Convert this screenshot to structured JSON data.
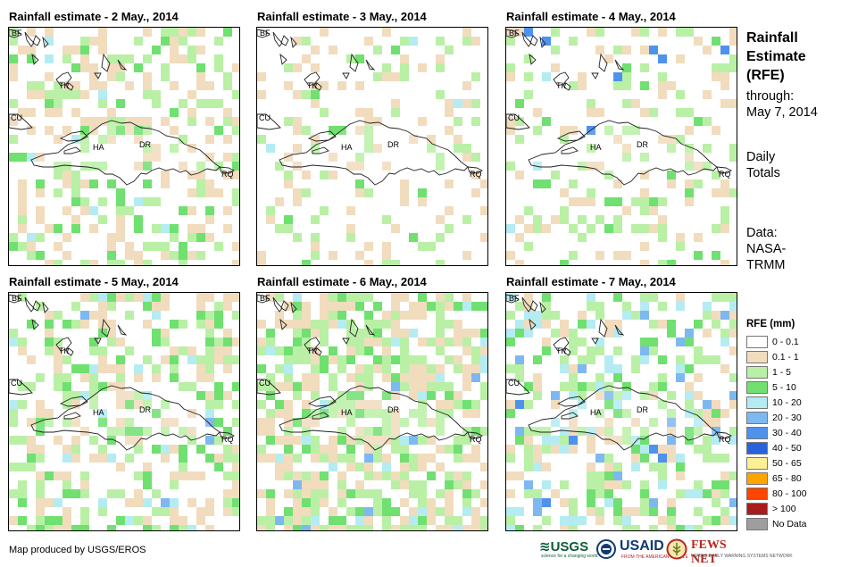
{
  "panels": [
    {
      "title": "Rainfall estimate - 2 May., 2014"
    },
    {
      "title": "Rainfall estimate - 3 May., 2014"
    },
    {
      "title": "Rainfall estimate - 4 May., 2014"
    },
    {
      "title": "Rainfall estimate - 5 May., 2014"
    },
    {
      "title": "Rainfall estimate - 6 May., 2014"
    },
    {
      "title": "Rainfall estimate - 7 May., 2014"
    }
  ],
  "place_labels": {
    "bf": "BF",
    "tk": "TK",
    "cu": "CU",
    "ha": "HA",
    "dr": "DR",
    "rq": "RQ"
  },
  "side_info": {
    "title_line1": "Rainfall",
    "title_line2": "Estimate",
    "title_line3": "(RFE)",
    "through_label": "through:",
    "through_date": "May 7, 2014",
    "totals_line1": "Daily",
    "totals_line2": "Totals",
    "data_label": "Data:",
    "data_source_line1": "NASA-",
    "data_source_line2": "TRMM"
  },
  "legend": {
    "title": "RFE (mm)",
    "items": [
      {
        "label": "0 - 0.1",
        "color": "#ffffff"
      },
      {
        "label": "0.1 - 1",
        "color": "#f1dcbe"
      },
      {
        "label": "1 - 5",
        "color": "#b9f0a6"
      },
      {
        "label": "5 - 10",
        "color": "#70e070"
      },
      {
        "label": "10 - 20",
        "color": "#b4ecf2"
      },
      {
        "label": "20 - 30",
        "color": "#7eb8f0"
      },
      {
        "label": "30 - 40",
        "color": "#4e92ec"
      },
      {
        "label": "40 - 50",
        "color": "#2a62dc"
      },
      {
        "label": "50 - 65",
        "color": "#fff096"
      },
      {
        "label": "65 - 80",
        "color": "#ffa500"
      },
      {
        "label": "80 - 100",
        "color": "#ff4400"
      },
      {
        "label": "> 100",
        "color": "#a81c1c"
      },
      {
        "label": "No Data",
        "color": "#9e9e9e"
      }
    ]
  },
  "footer": {
    "credit": "Map produced by USGS/EROS",
    "usgs": "USGS",
    "usgs_tagline": "science for a changing world",
    "usaid": "USAID",
    "usaid_tagline": "FROM THE AMERICAN PEOPLE",
    "fews": "FEWS NET",
    "fews_tagline": "FAMINE EARLY WARNING SYSTEMS NETWORK"
  }
}
